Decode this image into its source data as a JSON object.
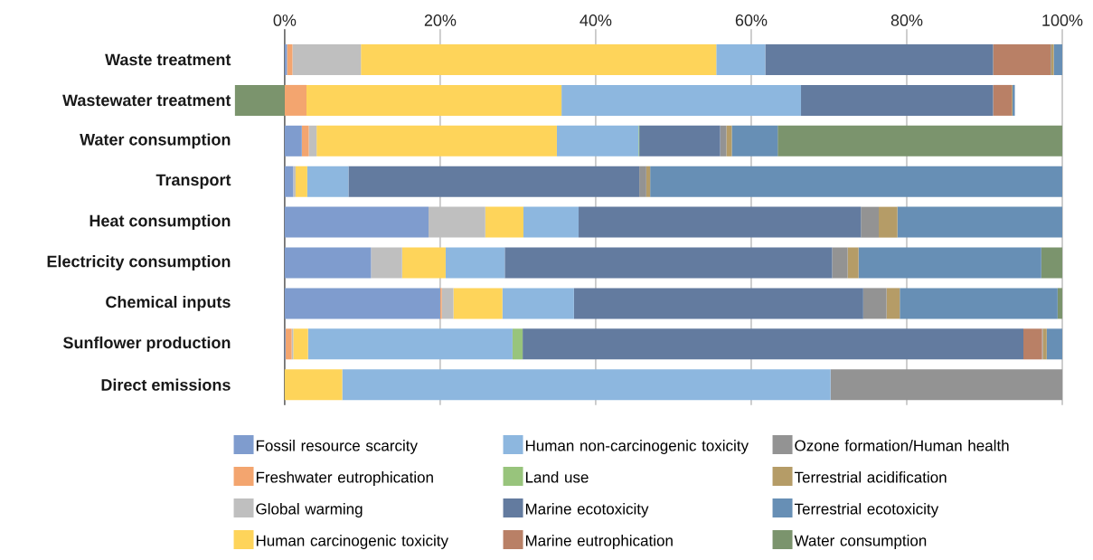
{
  "chart_data": {
    "type": "bar",
    "orientation": "horizontal",
    "stacked": true,
    "grid": "x",
    "legend": "bottom",
    "categories": [
      "Waste treatment",
      "Wastewater treatment",
      "Water consumption",
      "Transport",
      "Heat consumption",
      "Electricity consumption",
      "Chemical inputs",
      "Sunflower production",
      "Direct emissions"
    ],
    "xlim": [
      -6.5,
      100
    ],
    "xticks": [
      {
        "value": 0,
        "label": "0%"
      },
      {
        "value": 20,
        "label": "20%"
      },
      {
        "value": 40,
        "label": "40%"
      },
      {
        "value": 60,
        "label": "60%"
      },
      {
        "value": 80,
        "label": "80%"
      },
      {
        "value": 100,
        "label": "100%"
      }
    ],
    "series": [
      {
        "name": "Fossil resource scarcity",
        "color": "#7f9cce",
        "values": [
          0.3,
          0,
          2.2,
          1.1,
          18.5,
          11.1,
          20.0,
          0.1,
          0
        ]
      },
      {
        "name": "Freshwater eutrophication",
        "color": "#f3a56f",
        "values": [
          0.7,
          2.8,
          0.9,
          0,
          0,
          0,
          0.2,
          0.8,
          0
        ]
      },
      {
        "name": "Global warming",
        "color": "#bfbfbf",
        "values": [
          8.8,
          0,
          1.0,
          0.3,
          7.3,
          4.0,
          1.5,
          0.2,
          0
        ]
      },
      {
        "name": "Human carcinogenic toxicity",
        "color": "#fed45a",
        "values": [
          45.7,
          32.8,
          30.9,
          1.5,
          4.9,
          5.6,
          6.3,
          1.9,
          7.4
        ]
      },
      {
        "name": "Human non-carcinogenic toxicity",
        "color": "#8db7df",
        "values": [
          6.3,
          30.8,
          10.5,
          5.3,
          7.1,
          7.6,
          9.2,
          26.3,
          62.8
        ]
      },
      {
        "name": "Land use",
        "color": "#98c47c",
        "values": [
          0,
          0,
          0.1,
          0,
          0,
          0,
          0,
          1.3,
          0
        ]
      },
      {
        "name": "Marine ecotoxicity",
        "color": "#637b9f",
        "values": [
          29.3,
          24.7,
          10.4,
          37.4,
          36.3,
          42.1,
          37.2,
          64.4,
          0
        ]
      },
      {
        "name": "Marine eutrophication",
        "color": "#b98066",
        "values": [
          7.4,
          2.4,
          0,
          0,
          0,
          0,
          0,
          2.4,
          0
        ]
      },
      {
        "name": "Ozone formation/Human health",
        "color": "#939393",
        "values": [
          0.1,
          0,
          0.8,
          0.9,
          2.3,
          2.0,
          3.0,
          0.1,
          29.8
        ]
      },
      {
        "name": "Terrestrial acidification",
        "color": "#b59c67",
        "values": [
          0.3,
          0.1,
          0.7,
          0.5,
          2.4,
          1.4,
          1.7,
          0.5,
          0
        ]
      },
      {
        "name": "Terrestrial ecotoxicity",
        "color": "#678fb5",
        "values": [
          1.1,
          0.3,
          5.9,
          53.0,
          21.2,
          23.5,
          20.3,
          2.0,
          0
        ]
      },
      {
        "name": "Water consumption",
        "color": "#7b946d",
        "values": [
          0,
          -6.4,
          36.6,
          0,
          0,
          2.7,
          0.6,
          0,
          0
        ]
      }
    ]
  }
}
